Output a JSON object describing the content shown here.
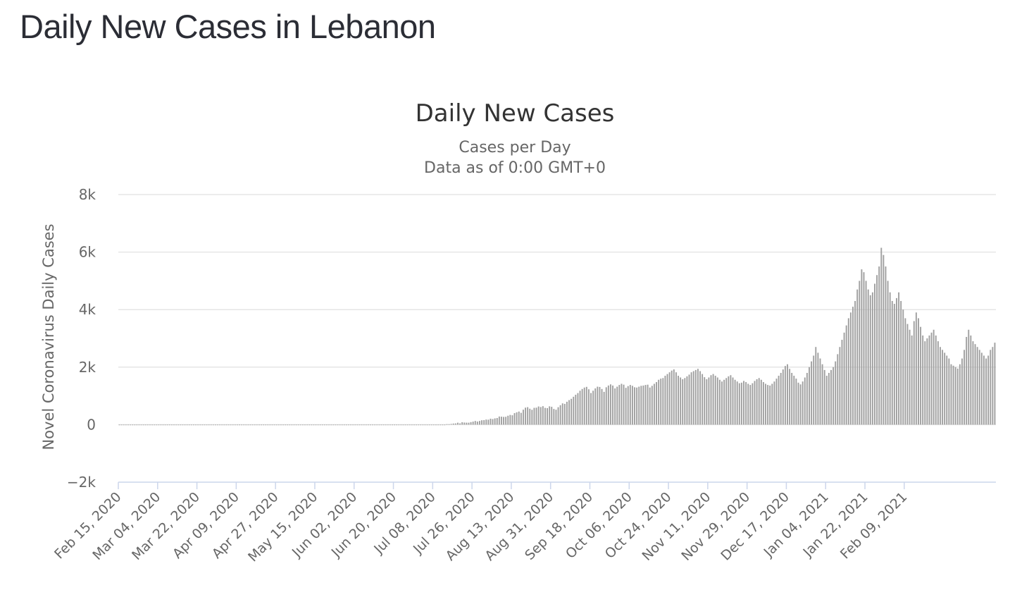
{
  "page": {
    "title": "Daily New Cases in Lebanon"
  },
  "chart_data": {
    "type": "bar",
    "title": "Daily New Cases",
    "subtitle_lines": [
      "Cases per Day",
      "Data as of 0:00 GMT+0"
    ],
    "xlabel": "",
    "ylabel": "Novel Coronavirus Daily Cases",
    "ylim": [
      -2000,
      8000
    ],
    "y_ticks": [
      -2000,
      0,
      2000,
      4000,
      6000,
      8000
    ],
    "y_tick_labels": [
      "−2k",
      "0",
      "2k",
      "4k",
      "6k",
      "8k"
    ],
    "x_tick_labels": [
      "Feb 15, 2020",
      "Mar 04, 2020",
      "Mar 22, 2020",
      "Apr 09, 2020",
      "Apr 27, 2020",
      "May 15, 2020",
      "Jun 02, 2020",
      "Jun 20, 2020",
      "Jul 08, 2020",
      "Jul 26, 2020",
      "Aug 13, 2020",
      "Aug 31, 2020",
      "Sep 18, 2020",
      "Oct 06, 2020",
      "Oct 24, 2020",
      "Nov 11, 2020",
      "Nov 29, 2020",
      "Dec 17, 2020",
      "Jan 04, 2021",
      "Jan 22, 2021",
      "Feb 09, 2021"
    ],
    "grid": true,
    "legend": "none",
    "bar_color": "#a0a0a0",
    "series": [
      {
        "start_date": "2020-02-15",
        "values": [
          0,
          0,
          0,
          0,
          0,
          0,
          0,
          0,
          0,
          0,
          0,
          0,
          0,
          0,
          0,
          0,
          0,
          0,
          0,
          0,
          0,
          0,
          0,
          0,
          0,
          0,
          0,
          0,
          0,
          0,
          0,
          0,
          0,
          0,
          0,
          0,
          0,
          0,
          0,
          0,
          0,
          0,
          0,
          0,
          0,
          0,
          0,
          0,
          0,
          0,
          0,
          0,
          0,
          0,
          0,
          0,
          0,
          0,
          0,
          0,
          0,
          0,
          0,
          0,
          0,
          0,
          0,
          0,
          0,
          0,
          0,
          0,
          0,
          0,
          0,
          0,
          0,
          0,
          0,
          0,
          0,
          0,
          0,
          0,
          0,
          0,
          0,
          0,
          0,
          0,
          0,
          0,
          0,
          0,
          0,
          0,
          0,
          0,
          0,
          0,
          0,
          0,
          0,
          0,
          0,
          0,
          0,
          0,
          0,
          0,
          0,
          0,
          0,
          0,
          0,
          0,
          0,
          0,
          0,
          0,
          0,
          0,
          0,
          0,
          0,
          0,
          0,
          0,
          0,
          0,
          0,
          0,
          0,
          0,
          0,
          0,
          0,
          0,
          0,
          0,
          0,
          0,
          0,
          0,
          0,
          0,
          0,
          0,
          0,
          0,
          16,
          15,
          25,
          38,
          43,
          67,
          45,
          83,
          73,
          69,
          68,
          88,
          106,
          129,
          108,
          129,
          152,
          157,
          177,
          173,
          207,
          194,
          218,
          231,
          283,
          277,
          269,
          273,
          310,
          338,
          326,
          401,
          428,
          456,
          412,
          520,
          591,
          608,
          555,
          517,
          585,
          591,
          632,
          613,
          642,
          583,
          574,
          636,
          620,
          545,
          519,
          606,
          676,
          740,
          723,
          796,
          854,
          898,
          970,
          1040,
          1098,
          1180,
          1240,
          1290,
          1314,
          1230,
          1100,
          1180,
          1260,
          1320,
          1310,
          1240,
          1140,
          1300,
          1360,
          1400,
          1360,
          1260,
          1320,
          1380,
          1420,
          1390,
          1280,
          1340,
          1380,
          1350,
          1300,
          1290,
          1320,
          1350,
          1360,
          1380,
          1390,
          1290,
          1350,
          1420,
          1480,
          1560,
          1600,
          1620,
          1700,
          1760,
          1820,
          1880,
          1920,
          1820,
          1700,
          1640,
          1580,
          1620,
          1680,
          1740,
          1820,
          1860,
          1900,
          1940,
          1860,
          1760,
          1650,
          1580,
          1640,
          1720,
          1760,
          1700,
          1640,
          1560,
          1500,
          1560,
          1620,
          1680,
          1720,
          1640,
          1560,
          1500,
          1440,
          1460,
          1520,
          1480,
          1420,
          1380,
          1440,
          1520,
          1580,
          1620,
          1560,
          1480,
          1420,
          1380,
          1360,
          1420,
          1500,
          1600,
          1700,
          1800,
          1920,
          2040,
          2100,
          1940,
          1800,
          1700,
          1600,
          1460,
          1400,
          1500,
          1640,
          1800,
          2000,
          2200,
          2400,
          2700,
          2500,
          2300,
          2100,
          1900,
          1700,
          1800,
          1900,
          2000,
          2200,
          2450,
          2700,
          2950,
          3200,
          3450,
          3700,
          3900,
          4100,
          4300,
          4700,
          5000,
          5400,
          5300,
          5000,
          4700,
          4500,
          4600,
          4900,
          5200,
          5500,
          6150,
          5900,
          5500,
          5000,
          4600,
          4300,
          4200,
          4400,
          4600,
          4300,
          4000,
          3700,
          3500,
          3300,
          3100,
          3600,
          3900,
          3700,
          3400,
          3100,
          2900,
          3000,
          3100,
          3200,
          3300,
          3100,
          2900,
          2700,
          2600,
          2500,
          2400,
          2300,
          2100,
          2050,
          2000,
          1950,
          2100,
          2300,
          2600,
          3050,
          3300,
          3100,
          2900,
          2800,
          2700,
          2600,
          2500,
          2400,
          2300,
          2400,
          2600,
          2700,
          2850
        ]
      }
    ]
  }
}
